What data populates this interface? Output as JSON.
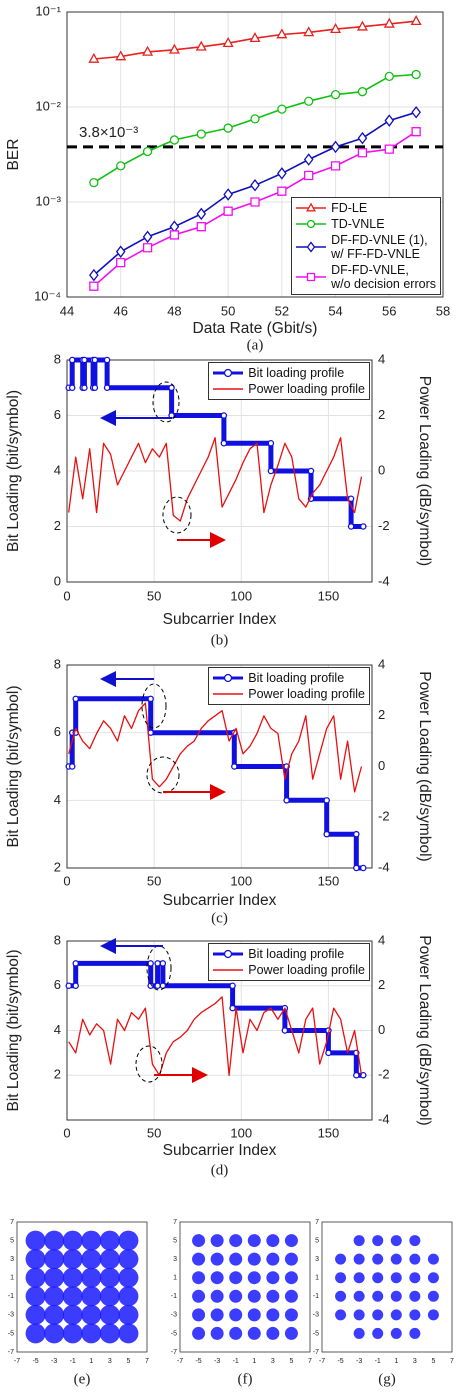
{
  "chart_data": [
    {
      "type": "line",
      "caption": "(a)",
      "x_label": "Data Rate (Gbit/s)",
      "y_label": "BER",
      "log_y": true,
      "grid": true,
      "legend": "lower right",
      "x": [
        45,
        46,
        47,
        48,
        49,
        50,
        51,
        52,
        53,
        54,
        55,
        56,
        57
      ],
      "xlim": [
        44,
        58
      ],
      "xticks": [
        44,
        46,
        48,
        50,
        52,
        54,
        56,
        58
      ],
      "ylim": [
        0.0001,
        0.1
      ],
      "yticks": [
        {
          "value": 0.0001,
          "label": "10⁻⁴"
        },
        {
          "value": 0.001,
          "label": "10⁻³"
        },
        {
          "value": 0.01,
          "label": "10⁻²"
        },
        {
          "value": 0.1,
          "label": "10⁻¹"
        }
      ],
      "threshold": 0.0038,
      "threshold_label": "3.8×10⁻³",
      "series": [
        {
          "name": "FD-LE",
          "color": "#e8201e",
          "marker": "triangle",
          "values": [
            0.032,
            0.034,
            0.038,
            0.04,
            0.043,
            0.047,
            0.053,
            0.058,
            0.061,
            0.066,
            0.07,
            0.075,
            0.08
          ]
        },
        {
          "name": "TD-VNLE",
          "color": "#10c010",
          "marker": "circle",
          "values": [
            0.0016,
            0.0024,
            0.0034,
            0.0045,
            0.0052,
            0.006,
            0.0075,
            0.0095,
            0.0115,
            0.0135,
            0.0145,
            0.021,
            0.022
          ]
        },
        {
          "name": "DF-FD-VNLE (1),\nw/ FF-FD-VNLE",
          "color": "#1010c0",
          "marker": "diamond",
          "values": [
            0.00017,
            0.0003,
            0.00043,
            0.00055,
            0.00075,
            0.0012,
            0.0015,
            0.002,
            0.0028,
            0.0038,
            0.0047,
            0.0072,
            0.0088
          ]
        },
        {
          "name": "DF-FD-VNLE,\nw/o decision errors",
          "color": "#f010f0",
          "marker": "square",
          "values": [
            0.00013,
            0.00023,
            0.00033,
            0.00045,
            0.00055,
            0.0008,
            0.001,
            0.0013,
            0.0019,
            0.0024,
            0.0033,
            0.0036,
            0.0055
          ]
        }
      ]
    },
    {
      "type": "line",
      "caption": "(b)",
      "x_label": "Subcarrier Index",
      "y_label": "Bit Loading (bit/symbol)",
      "y2_label": "Power Loading (dB/symbol)",
      "grid": true,
      "legend": "upper right",
      "xlim": [
        0,
        175
      ],
      "xticks": [
        0,
        50,
        100,
        150
      ],
      "ylim": [
        0,
        8
      ],
      "yticks": [
        0,
        2,
        4,
        6,
        8
      ],
      "y2lim": [
        -4,
        4
      ],
      "y2ticks": [
        -4,
        -2,
        0,
        2,
        4
      ],
      "series": [
        {
          "name": "Bit loading profile",
          "color": "#1010e0",
          "marker": "circle",
          "x": [
            1,
            3,
            3,
            9,
            9,
            10,
            10,
            15,
            15,
            16,
            16,
            23,
            23,
            60,
            60,
            90,
            90,
            117,
            117,
            140,
            140,
            163,
            163,
            170
          ],
          "values": [
            7,
            7,
            8,
            8,
            7,
            7,
            8,
            8,
            7,
            7,
            8,
            8,
            7,
            7,
            6,
            6,
            5,
            5,
            4,
            4,
            3,
            3,
            2,
            2
          ]
        },
        {
          "name": "Power loading profile",
          "color": "#e81010",
          "axis": "y2",
          "x": [
            1,
            5,
            9,
            13,
            17,
            21,
            25,
            29,
            33,
            37,
            41,
            45,
            49,
            53,
            57,
            61,
            65,
            69,
            73,
            77,
            81,
            85,
            89,
            93,
            97,
            101,
            105,
            109,
            113,
            117,
            121,
            125,
            129,
            133,
            137,
            141,
            145,
            149,
            153,
            157,
            161,
            165,
            169
          ],
          "values": [
            -1.5,
            0.5,
            -1.0,
            0.8,
            -1.5,
            1.0,
            0.6,
            -0.5,
            0.0,
            0.5,
            1.0,
            0.3,
            0.8,
            0.5,
            1.0,
            -1.6,
            -1.8,
            -1.0,
            -0.5,
            0.0,
            0.5,
            1.2,
            -1.3,
            -0.8,
            -0.3,
            0.3,
            0.8,
            1.0,
            -1.5,
            -0.5,
            0.2,
            1.0,
            0.5,
            -1.0,
            -1.3,
            -0.8,
            -0.5,
            0.0,
            0.5,
            1.2,
            -1.0,
            -1.5,
            -0.2
          ]
        }
      ]
    },
    {
      "type": "line",
      "caption": "(c)",
      "x_label": "Subcarrier Index",
      "y_label": "Bit Loading (bit/symbol)",
      "y2_label": "Power Loading (dB/symbol)",
      "grid": true,
      "legend": "upper right",
      "xlim": [
        0,
        175
      ],
      "xticks": [
        0,
        50,
        100,
        150
      ],
      "ylim": [
        2,
        8
      ],
      "yticks": [
        2,
        4,
        6,
        8
      ],
      "y2lim": [
        -4,
        4
      ],
      "y2ticks": [
        -4,
        -2,
        0,
        2,
        4
      ],
      "series": [
        {
          "name": "Bit loading profile",
          "color": "#1010e0",
          "marker": "circle",
          "x": [
            1,
            3,
            3,
            5,
            5,
            48,
            48,
            96,
            96,
            126,
            126,
            149,
            149,
            166,
            166,
            170
          ],
          "values": [
            5,
            5,
            6,
            6,
            7,
            7,
            6,
            6,
            5,
            5,
            4,
            4,
            3,
            3,
            2,
            2
          ]
        },
        {
          "name": "Power loading profile",
          "color": "#e81010",
          "axis": "y2",
          "x": [
            1,
            5,
            9,
            13,
            17,
            21,
            25,
            29,
            33,
            37,
            41,
            45,
            49,
            53,
            57,
            61,
            65,
            69,
            73,
            77,
            81,
            85,
            89,
            93,
            97,
            101,
            105,
            109,
            113,
            117,
            121,
            125,
            129,
            133,
            137,
            141,
            145,
            149,
            153,
            157,
            161,
            165,
            169
          ],
          "values": [
            0.5,
            1.5,
            1.0,
            0.7,
            1.3,
            1.8,
            1.5,
            1.0,
            2.0,
            1.5,
            2.2,
            2.5,
            -0.5,
            -0.8,
            -0.5,
            0.0,
            0.5,
            0.8,
            1.0,
            1.5,
            1.8,
            2.0,
            2.2,
            1.0,
            1.5,
            0.5,
            0.8,
            1.3,
            2.0,
            1.5,
            1.3,
            -0.5,
            0.5,
            1.0,
            2.0,
            -0.5,
            0.5,
            1.5,
            2.0,
            -0.5,
            1.0,
            -1.0,
            0.0
          ]
        }
      ]
    },
    {
      "type": "line",
      "caption": "(d)",
      "x_label": "Subcarrier Index",
      "y_label": "Bit Loading (bit/symbol)",
      "y2_label": "Power Loading (dB/symbol)",
      "grid": true,
      "legend": "upper right",
      "xlim": [
        0,
        175
      ],
      "xticks": [
        0,
        50,
        100,
        150
      ],
      "ylim": [
        0,
        8
      ],
      "yticks": [
        2,
        4,
        6,
        8
      ],
      "y2lim": [
        -4,
        4
      ],
      "y2ticks": [
        -4,
        -2,
        0,
        2,
        4
      ],
      "series": [
        {
          "name": "Bit loading profile",
          "color": "#1010e0",
          "marker": "circle",
          "x": [
            1,
            5,
            5,
            48,
            48,
            52,
            52,
            55,
            55,
            95,
            95,
            125,
            125,
            150,
            150,
            166,
            166,
            170
          ],
          "values": [
            6,
            6,
            7,
            7,
            6,
            6,
            7,
            7,
            6,
            6,
            5,
            5,
            4,
            4,
            3,
            3,
            2,
            2
          ]
        },
        {
          "name": "Power loading profile",
          "color": "#e81010",
          "axis": "y2",
          "x": [
            1,
            5,
            9,
            13,
            17,
            21,
            25,
            29,
            33,
            37,
            41,
            45,
            49,
            53,
            57,
            61,
            65,
            69,
            73,
            77,
            81,
            85,
            89,
            93,
            97,
            101,
            105,
            109,
            113,
            117,
            121,
            125,
            129,
            133,
            137,
            141,
            145,
            149,
            153,
            157,
            161,
            165,
            169
          ],
          "values": [
            -0.5,
            -1.0,
            0.5,
            -0.2,
            0.3,
            0.0,
            -1.5,
            0.5,
            0.0,
            0.8,
            0.5,
            1.0,
            -1.5,
            -2.0,
            -1.0,
            -0.5,
            -0.3,
            0.0,
            0.5,
            0.8,
            1.0,
            1.2,
            1.5,
            -2.0,
            1.0,
            -1.0,
            0.5,
            0.0,
            0.8,
            1.0,
            0.5,
            1.0,
            0.0,
            -1.0,
            0.5,
            1.0,
            -1.5,
            -0.5,
            1.0,
            0.5,
            -1.0,
            0.0,
            -2.0
          ]
        }
      ]
    },
    {
      "type": "scatter",
      "caption": "(e)",
      "xlim": [
        -7,
        7
      ],
      "xticks": [
        -7,
        -5,
        -3,
        -1,
        1,
        3,
        5,
        7
      ],
      "ylim": [
        -7,
        7
      ],
      "yticks": [
        -7,
        -5,
        -3,
        -1,
        1,
        3,
        5,
        7
      ],
      "series": [
        {
          "color": "#1a1aff",
          "x": [
            -5,
            -3,
            -1,
            1,
            3,
            5,
            -5,
            -3,
            -1,
            1,
            3,
            5,
            -5,
            -3,
            -1,
            1,
            3,
            5,
            -5,
            -3,
            -1,
            1,
            3,
            5,
            -5,
            -3,
            -1,
            1,
            3,
            5,
            -5,
            -3,
            -1,
            1,
            3,
            5
          ],
          "values": [
            5,
            5,
            5,
            5,
            5,
            5,
            3,
            3,
            3,
            3,
            3,
            3,
            1,
            1,
            1,
            1,
            1,
            1,
            -1,
            -1,
            -1,
            -1,
            -1,
            -1,
            -3,
            -3,
            -3,
            -3,
            -3,
            -3,
            -5,
            -5,
            -5,
            -5,
            -5,
            -5
          ]
        }
      ]
    },
    {
      "type": "scatter",
      "caption": "(f)",
      "xlim": [
        -7,
        7
      ],
      "xticks": [
        -7,
        -5,
        -3,
        -1,
        1,
        3,
        5,
        7
      ],
      "ylim": [
        -7,
        7
      ],
      "yticks": [
        -7,
        -5,
        -3,
        -1,
        1,
        3,
        5,
        7
      ],
      "series": [
        {
          "color": "#1a1aff",
          "x": [
            -5,
            -3,
            -1,
            1,
            3,
            5,
            -5,
            -3,
            -1,
            1,
            3,
            5,
            -5,
            -3,
            -1,
            1,
            3,
            5,
            -5,
            -3,
            -1,
            1,
            3,
            5,
            -5,
            -3,
            -1,
            1,
            3,
            5,
            -5,
            -3,
            -1,
            1,
            3,
            5
          ],
          "values": [
            5,
            5,
            5,
            5,
            5,
            5,
            3,
            3,
            3,
            3,
            3,
            3,
            1,
            1,
            1,
            1,
            1,
            1,
            -1,
            -1,
            -1,
            -1,
            -1,
            -1,
            -3,
            -3,
            -3,
            -3,
            -3,
            -3,
            -5,
            -5,
            -5,
            -5,
            -5,
            -5
          ]
        }
      ]
    },
    {
      "type": "scatter",
      "caption": "(g)",
      "xlim": [
        -7,
        7
      ],
      "xticks": [
        -7,
        -5,
        -3,
        -1,
        1,
        3,
        5,
        7
      ],
      "ylim": [
        -7,
        7
      ],
      "yticks": [
        -7,
        -5,
        -3,
        -1,
        1,
        3,
        5,
        7
      ],
      "series": [
        {
          "color": "#1a1aff",
          "x": [
            -3,
            -1,
            1,
            3,
            -5,
            -3,
            -1,
            1,
            3,
            5,
            -5,
            -3,
            -1,
            1,
            3,
            5,
            -5,
            -3,
            -1,
            1,
            3,
            5,
            -5,
            -3,
            -1,
            1,
            3,
            5,
            -3,
            -1,
            1,
            3
          ],
          "values": [
            5,
            5,
            5,
            5,
            3,
            3,
            3,
            3,
            3,
            3,
            1,
            1,
            1,
            1,
            1,
            1,
            -1,
            -1,
            -1,
            -1,
            -1,
            -1,
            -3,
            -3,
            -3,
            -3,
            -3,
            -3,
            -5,
            -5,
            -5,
            -5
          ]
        }
      ]
    }
  ]
}
